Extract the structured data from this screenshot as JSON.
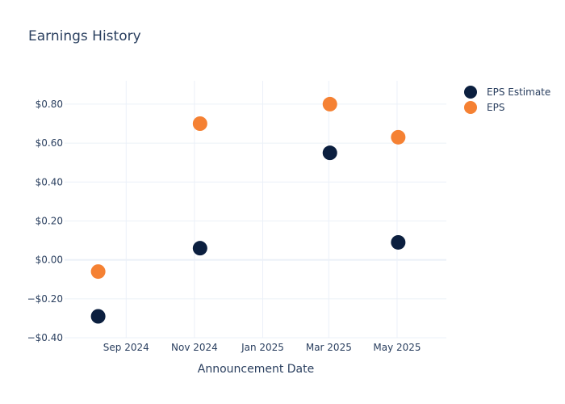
{
  "chart_data": {
    "type": "scatter",
    "title": "Earnings History",
    "xlabel": "Announcement Date",
    "ylabel": "",
    "x_ticks": [
      "Sep 2024",
      "Nov 2024",
      "Jan 2025",
      "Mar 2025",
      "May 2025"
    ],
    "x_tick_dates": [
      "2024-09-01",
      "2024-11-01",
      "2025-01-01",
      "2025-03-01",
      "2025-05-01"
    ],
    "xlim": [
      "2024-07-08",
      "2025-06-14"
    ],
    "y_ticks": [
      -0.4,
      -0.2,
      0,
      0.2,
      0.4,
      0.6,
      0.8
    ],
    "y_tick_labels": [
      "−$0.40",
      "−$0.20",
      "$0.00",
      "$0.20",
      "$0.40",
      "$0.60",
      "$0.80"
    ],
    "ylim": [
      -0.4,
      0.92
    ],
    "grid": true,
    "legend_position": "top-right",
    "series": [
      {
        "name": "EPS Estimate",
        "color": "#0b1f3f",
        "points": [
          {
            "x": "2024-08-07",
            "y": -0.29
          },
          {
            "x": "2024-11-06",
            "y": 0.06
          },
          {
            "x": "2025-03-02",
            "y": 0.55
          },
          {
            "x": "2025-05-02",
            "y": 0.09
          }
        ]
      },
      {
        "name": "EPS",
        "color": "#f58133",
        "points": [
          {
            "x": "2024-08-07",
            "y": -0.06
          },
          {
            "x": "2024-11-06",
            "y": 0.7
          },
          {
            "x": "2025-03-02",
            "y": 0.8
          },
          {
            "x": "2025-05-02",
            "y": 0.63
          }
        ]
      }
    ]
  }
}
